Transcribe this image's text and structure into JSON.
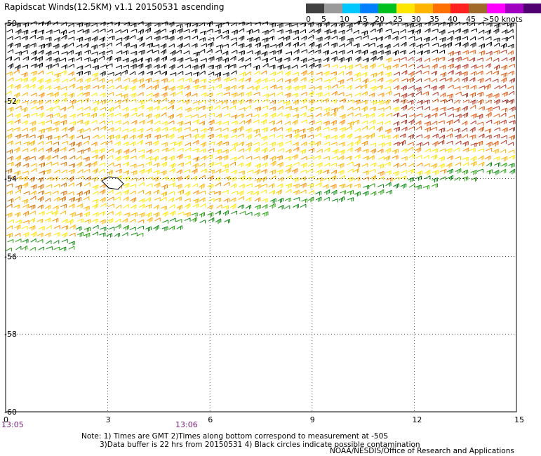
{
  "title": "Rapidscat Winds(12.5KM) v1.1 20150531 ascending",
  "legend": {
    "colors": [
      "#404040",
      "#9a9a9a",
      "#00c8ff",
      "#0080ff",
      "#00c020",
      "#ffe600",
      "#ffb400",
      "#ff7000",
      "#ff2020",
      "#a06a2a",
      "#ff00ff",
      "#a000c0",
      "#500070"
    ],
    "labels": [
      "0",
      "5",
      "10",
      "15",
      "20",
      "25",
      "30",
      "35",
      "40",
      "45",
      ">50 knots"
    ]
  },
  "axes": {
    "y_labels": [
      "-50",
      "-52",
      "-54",
      "-56",
      "-58",
      "-60"
    ],
    "x_labels": [
      "0",
      "3",
      "6",
      "9",
      "12",
      "15"
    ],
    "time_labels": [
      "13:05",
      "13:06"
    ]
  },
  "notes": {
    "line1": "Note: 1) Times are GMT 2)Times along bottom correspond to measurement at -50S",
    "line2": "3)Data buffer is 22 hrs from 20150531 4) Black circles indicate possible contamination",
    "credit": "NOAA/NESDIS/Office of Research and Applications"
  }
}
